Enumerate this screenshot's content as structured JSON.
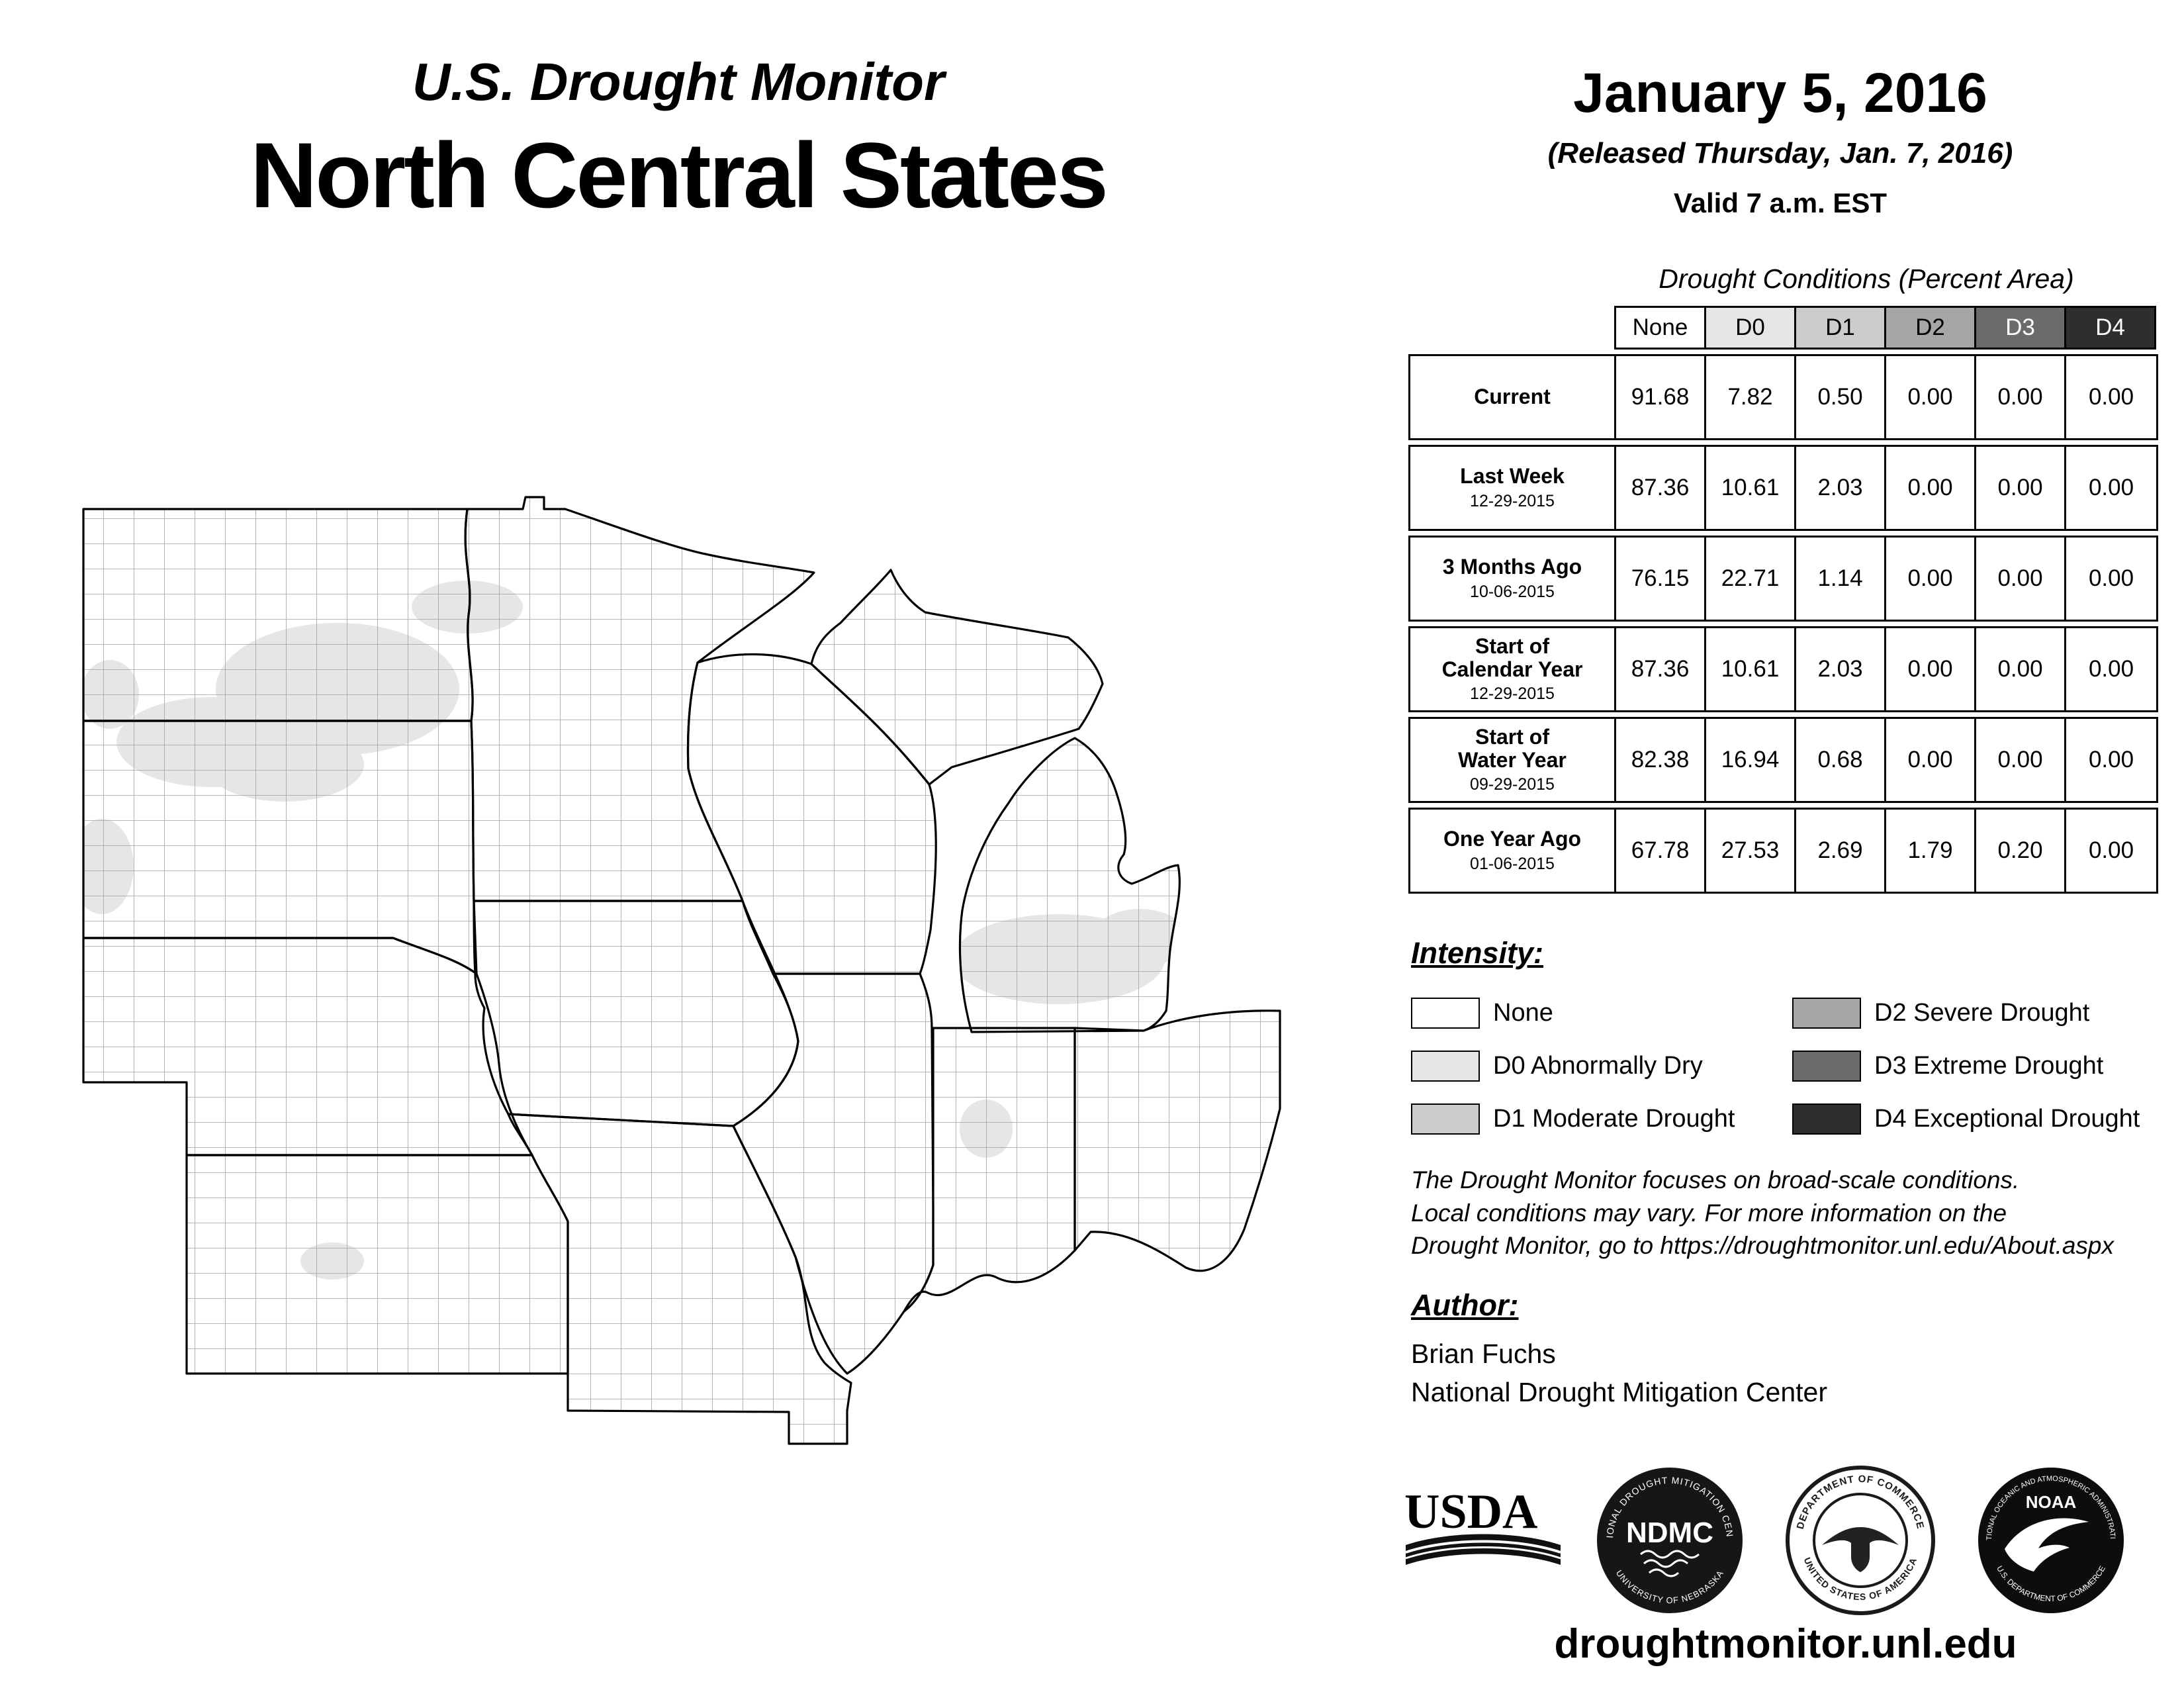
{
  "header": {
    "title_line1": "U.S. Drought Monitor",
    "title_line2": "North Central States",
    "date": "January 5, 2016",
    "released": "(Released Thursday, Jan. 7, 2016)",
    "valid": "Valid 7 a.m. EST"
  },
  "table": {
    "caption": "Drought Conditions (Percent Area)",
    "columns": [
      {
        "label": "None",
        "bg": "#ffffff",
        "fg": "#000000"
      },
      {
        "label": "D0",
        "bg": "#e6e6e6",
        "fg": "#000000"
      },
      {
        "label": "D1",
        "bg": "#cccccc",
        "fg": "#000000"
      },
      {
        "label": "D2",
        "bg": "#a6a6a6",
        "fg": "#000000"
      },
      {
        "label": "D3",
        "bg": "#6b6b6b",
        "fg": "#ffffff"
      },
      {
        "label": "D4",
        "bg": "#2e2e2e",
        "fg": "#ffffff"
      }
    ],
    "rows": [
      {
        "label": "Current",
        "date": "",
        "values": [
          "91.68",
          "7.82",
          "0.50",
          "0.00",
          "0.00",
          "0.00"
        ]
      },
      {
        "label": "Last Week",
        "date": "12-29-2015",
        "values": [
          "87.36",
          "10.61",
          "2.03",
          "0.00",
          "0.00",
          "0.00"
        ]
      },
      {
        "label": "3 Months Ago",
        "date": "10-06-2015",
        "values": [
          "76.15",
          "22.71",
          "1.14",
          "0.00",
          "0.00",
          "0.00"
        ]
      },
      {
        "label": "Start of\nCalendar Year",
        "date": "12-29-2015",
        "values": [
          "87.36",
          "10.61",
          "2.03",
          "0.00",
          "0.00",
          "0.00"
        ]
      },
      {
        "label": "Start of\nWater Year",
        "date": "09-29-2015",
        "values": [
          "82.38",
          "16.94",
          "0.68",
          "0.00",
          "0.00",
          "0.00"
        ]
      },
      {
        "label": "One Year Ago",
        "date": "01-06-2015",
        "values": [
          "67.78",
          "27.53",
          "2.69",
          "1.79",
          "0.20",
          "0.00"
        ]
      }
    ]
  },
  "legend": {
    "heading": "Intensity:",
    "items": [
      {
        "label": "None",
        "color": "#ffffff"
      },
      {
        "label": "D0 Abnormally Dry",
        "color": "#e6e6e6"
      },
      {
        "label": "D1 Moderate Drought",
        "color": "#cccccc"
      },
      {
        "label": "D2 Severe Drought",
        "color": "#a6a6a6"
      },
      {
        "label": "D3 Extreme Drought",
        "color": "#6b6b6b"
      },
      {
        "label": "D4 Exceptional Drought",
        "color": "#2e2e2e"
      }
    ]
  },
  "disclaimer": {
    "line1": "The Drought Monitor focuses on broad-scale conditions.",
    "line2": "Local conditions may vary. For more information on the",
    "line3": "Drought Monitor, go to https://droughtmonitor.unl.edu/About.aspx"
  },
  "author": {
    "heading": "Author:",
    "name": "Brian Fuchs",
    "org": "National Drought Mitigation Center"
  },
  "logos": {
    "usda": "USDA",
    "ndmc": "NDMC",
    "ndmc_ring_top": "NATIONAL DROUGHT MITIGATION CENTER",
    "ndmc_ring_bottom": "UNIVERSITY OF NEBRASKA",
    "commerce_ring_top": "DEPARTMENT OF COMMERCE",
    "commerce_ring_bottom": "UNITED STATES OF AMERICA",
    "noaa": "NOAA",
    "noaa_ring_top": "NATIONAL OCEANIC AND ATMOSPHERIC ADMINISTRATION",
    "noaa_ring_bottom": "U.S. DEPARTMENT OF COMMERCE"
  },
  "footer": {
    "url": "droughtmonitor.unl.edu"
  },
  "map": {
    "d0_fill": "#e6e6e6"
  }
}
